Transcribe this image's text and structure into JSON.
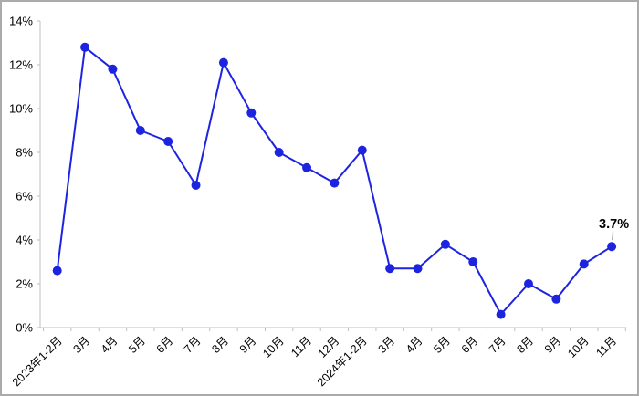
{
  "chart_data": {
    "type": "line",
    "title": "",
    "xlabel": "",
    "ylabel": "",
    "categories": [
      "2023年1-2月",
      "3月",
      "4月",
      "5月",
      "6月",
      "7月",
      "8月",
      "9月",
      "10月",
      "11月",
      "12月",
      "2024年1-2月",
      "3月",
      "4月",
      "5月",
      "6月",
      "7月",
      "8月",
      "9月",
      "10月",
      "11月"
    ],
    "values": [
      2.6,
      12.8,
      11.8,
      9.0,
      8.5,
      6.5,
      12.1,
      9.8,
      8.0,
      7.3,
      6.6,
      8.1,
      2.7,
      2.7,
      3.8,
      3.0,
      0.6,
      2.0,
      1.3,
      2.9,
      3.7
    ],
    "ylim": [
      0,
      14
    ],
    "ytick_step": 2,
    "ytick_labels": [
      "0%",
      "2%",
      "4%",
      "6%",
      "8%",
      "10%",
      "12%",
      "14%"
    ],
    "grid": false,
    "legend": "none",
    "line_color": "#1d24e0",
    "marker_color": "#1d24e0",
    "axis_color": "#bfbfbf",
    "annotation": {
      "text": "3.7%",
      "target_index": 20,
      "leader_color": "#a6a6a6"
    }
  }
}
